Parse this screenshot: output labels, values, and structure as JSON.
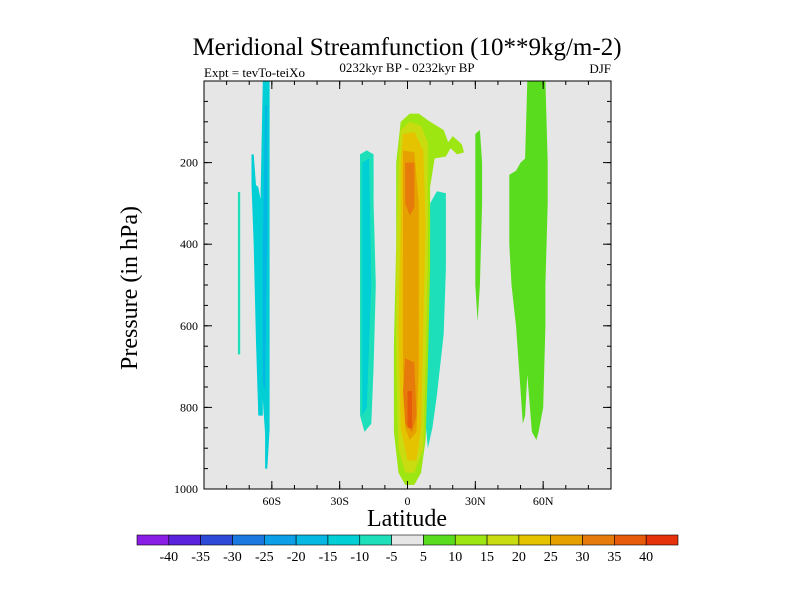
{
  "chart_data": {
    "type": "heatmap",
    "title": "Meridional Streamfunction (10**9kg/m-2)",
    "subtitle": "0232kyr BP - 0232kyr BP",
    "left_label": "Expt = tevTo-teiXo",
    "right_label": "DJF",
    "xlabel": "Latitude",
    "ylabel": "Pressure (in hPa)",
    "xlim": [
      -90,
      90
    ],
    "ylim": [
      1000,
      0
    ],
    "y_reversed": true,
    "x_ticks": [
      {
        "value": -60,
        "label": "60S"
      },
      {
        "value": -30,
        "label": "30S"
      },
      {
        "value": 0,
        "label": "0"
      },
      {
        "value": 30,
        "label": "30N"
      },
      {
        "value": 60,
        "label": "60N"
      }
    ],
    "y_ticks": [
      {
        "value": 200,
        "label": "200"
      },
      {
        "value": 400,
        "label": "400"
      },
      {
        "value": 600,
        "label": "600"
      },
      {
        "value": 800,
        "label": "800"
      },
      {
        "value": 1000,
        "label": "1000"
      }
    ],
    "x_minor_step": 10,
    "y_minor_step": 50,
    "levels": [
      -40,
      -35,
      -30,
      -25,
      -20,
      -15,
      -10,
      -5,
      5,
      10,
      15,
      20,
      25,
      30,
      35,
      40
    ],
    "colors": [
      "#8a1ee6",
      "#5a22dc",
      "#2d49d8",
      "#1a78e0",
      "#0c9ee6",
      "#05b8e3",
      "#00cfd5",
      "#1de0bb",
      "#e6e6e6",
      "#5adc1e",
      "#9de612",
      "#c8dc10",
      "#e6c300",
      "#e6a000",
      "#e67a0a",
      "#e65a0a",
      "#e6320a"
    ],
    "background_color": "#e6e6e6",
    "regions": [
      {
        "level": "-5",
        "points": [
          [
            -75,
            272
          ],
          [
            -74,
            272
          ],
          [
            -74,
            670
          ],
          [
            -75,
            670
          ]
        ]
      },
      {
        "level": "-10",
        "points": [
          [
            -69,
            180
          ],
          [
            -68,
            180
          ],
          [
            -67,
            255
          ],
          [
            -66,
            260
          ],
          [
            -65,
            290
          ],
          [
            -64,
            0
          ],
          [
            -63,
            0
          ],
          [
            -62,
            0
          ],
          [
            -61,
            0
          ],
          [
            -61,
            380
          ],
          [
            -61,
            720
          ],
          [
            -61,
            855
          ],
          [
            -62,
            950
          ],
          [
            -63,
            950
          ],
          [
            -63,
            865
          ],
          [
            -64,
            780
          ],
          [
            -64,
            820
          ],
          [
            -66,
            820
          ],
          [
            -67,
            640
          ],
          [
            -68,
            400
          ],
          [
            -69,
            255
          ]
        ]
      },
      {
        "level": "-15",
        "points": [
          [
            -63,
            60
          ],
          [
            -62,
            60
          ],
          [
            -62,
            380
          ],
          [
            -63,
            760
          ],
          [
            -64,
            740
          ],
          [
            -64,
            400
          ]
        ]
      },
      {
        "level": "-5",
        "points": [
          [
            -21,
            180
          ],
          [
            -18,
            170
          ],
          [
            -15,
            180
          ],
          [
            -15,
            300
          ],
          [
            -14,
            500
          ],
          [
            -15,
            700
          ],
          [
            -16,
            840
          ],
          [
            -19,
            860
          ],
          [
            -21,
            820
          ],
          [
            -21,
            300
          ]
        ]
      },
      {
        "level": "-10",
        "points": [
          [
            -20,
            200
          ],
          [
            -17,
            190
          ],
          [
            -16,
            500
          ],
          [
            -18,
            800
          ],
          [
            -20,
            820
          ]
        ]
      },
      {
        "level": "-5",
        "points": [
          [
            10,
            300
          ],
          [
            13,
            270
          ],
          [
            17,
            275
          ],
          [
            17,
            460
          ],
          [
            16,
            620
          ],
          [
            13,
            770
          ],
          [
            11,
            850
          ],
          [
            9,
            900
          ],
          [
            8,
            840
          ],
          [
            9,
            500
          ]
        ]
      },
      {
        "level": "10",
        "points": [
          [
            -3,
            100
          ],
          [
            1,
            80
          ],
          [
            5,
            80
          ],
          [
            10,
            100
          ],
          [
            16,
            120
          ],
          [
            18,
            150
          ],
          [
            20,
            135
          ],
          [
            24,
            155
          ],
          [
            25,
            175
          ],
          [
            22,
            180
          ],
          [
            19,
            165
          ],
          [
            17,
            185
          ],
          [
            12,
            190
          ],
          [
            10,
            260
          ],
          [
            10,
            460
          ],
          [
            9,
            700
          ],
          [
            8,
            880
          ],
          [
            6,
            960
          ],
          [
            3,
            990
          ],
          [
            -1,
            990
          ],
          [
            -4,
            960
          ],
          [
            -6,
            860
          ],
          [
            -6,
            650
          ],
          [
            -5,
            400
          ],
          [
            -5,
            200
          ]
        ]
      },
      {
        "level": "15",
        "points": [
          [
            -3,
            120
          ],
          [
            1,
            100
          ],
          [
            6,
            110
          ],
          [
            9,
            150
          ],
          [
            9,
            250
          ],
          [
            9,
            450
          ],
          [
            8,
            700
          ],
          [
            7,
            900
          ],
          [
            3,
            960
          ],
          [
            -1,
            960
          ],
          [
            -4,
            900
          ],
          [
            -5,
            700
          ],
          [
            -5,
            450
          ],
          [
            -4,
            200
          ]
        ]
      },
      {
        "level": "20",
        "points": [
          [
            -2,
            130
          ],
          [
            3,
            125
          ],
          [
            7,
            170
          ],
          [
            8,
            350
          ],
          [
            7,
            600
          ],
          [
            6,
            850
          ],
          [
            4,
            930
          ],
          [
            0,
            930
          ],
          [
            -3,
            850
          ],
          [
            -4,
            600
          ],
          [
            -3,
            350
          ],
          [
            -3,
            200
          ]
        ]
      },
      {
        "level": "25",
        "points": [
          [
            -2,
            170
          ],
          [
            3,
            175
          ],
          [
            5,
            300
          ],
          [
            5,
            500
          ],
          [
            5,
            700
          ],
          [
            4,
            860
          ],
          [
            1,
            880
          ],
          [
            -1,
            850
          ],
          [
            -2,
            700
          ],
          [
            -2,
            450
          ],
          [
            -2,
            300
          ]
        ]
      },
      {
        "level": "30",
        "points": [
          [
            -1,
            200
          ],
          [
            3,
            200
          ],
          [
            3,
            310
          ],
          [
            1,
            330
          ],
          [
            -1,
            300
          ]
        ]
      },
      {
        "level": "30",
        "points": [
          [
            -1,
            680
          ],
          [
            3,
            690
          ],
          [
            4,
            820
          ],
          [
            2,
            860
          ],
          [
            -1,
            840
          ],
          [
            -2,
            760
          ]
        ]
      },
      {
        "level": "35",
        "points": [
          [
            0,
            760
          ],
          [
            2,
            760
          ],
          [
            2,
            850
          ],
          [
            0,
            850
          ]
        ]
      },
      {
        "level": "5",
        "points": [
          [
            30,
            130
          ],
          [
            32,
            120
          ],
          [
            33,
            200
          ],
          [
            33,
            300
          ],
          [
            32,
            500
          ],
          [
            31,
            590
          ],
          [
            30,
            500
          ],
          [
            30,
            250
          ]
        ]
      },
      {
        "level": "5",
        "points": [
          [
            45,
            230
          ],
          [
            48,
            220
          ],
          [
            50,
            200
          ],
          [
            52,
            190
          ],
          [
            53,
            0
          ],
          [
            57,
            0
          ],
          [
            61,
            0
          ],
          [
            62,
            200
          ],
          [
            62,
            300
          ],
          [
            61,
            500
          ],
          [
            61,
            600
          ],
          [
            60,
            800
          ],
          [
            58,
            860
          ],
          [
            57,
            880
          ],
          [
            55,
            860
          ],
          [
            53,
            720
          ],
          [
            52,
            820
          ],
          [
            51,
            840
          ],
          [
            50,
            760
          ],
          [
            48,
            600
          ],
          [
            46,
            500
          ],
          [
            45,
            400
          ]
        ]
      }
    ]
  }
}
